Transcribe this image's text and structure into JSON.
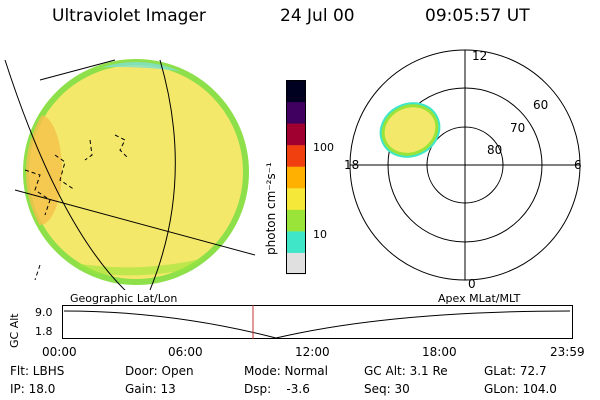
{
  "header": {
    "title": "Ultraviolet Imager",
    "date": "24 Jul 00",
    "time": "09:05:57 UT"
  },
  "colorbar": {
    "unit_label": "photon cm⁻²s⁻¹",
    "ticks": [
      "100",
      "10"
    ],
    "colors": [
      "#e0e0e0",
      "#3fe6c8",
      "#9ae43a",
      "#f6e838",
      "#ffb000",
      "#f04010",
      "#a00030",
      "#400060",
      "#000020"
    ]
  },
  "polar_plot": {
    "ring_labels": [
      "60",
      "70",
      "80"
    ],
    "mlt_labels": {
      "top": "12",
      "left": "18",
      "right": "6",
      "bottom": "0"
    }
  },
  "map_labels": {
    "left": "Geographic Lat/Lon",
    "right": "Apex MLat/MLT"
  },
  "altitude_plot": {
    "ylabel": "GC Alt",
    "y_ticks": [
      "9.0",
      "1.8"
    ],
    "x_ticks": [
      "00:00",
      "06:00",
      "12:00",
      "18:00",
      "23:59"
    ]
  },
  "info_rows": [
    [
      "Flt: LBHS",
      "Door: Open",
      "Mode: Normal",
      "GC Alt: 3.1 Re",
      "GLat: 72.7"
    ],
    [
      "IP: 18.0",
      "Gain: 13",
      "Dsp:    -3.6",
      "Seq: 30",
      "GLon: 104.0"
    ]
  ],
  "style": {
    "disk_fill": "#f4e86a",
    "disk_edge": "#8ee04a",
    "current_time_marker": "#c03030"
  }
}
